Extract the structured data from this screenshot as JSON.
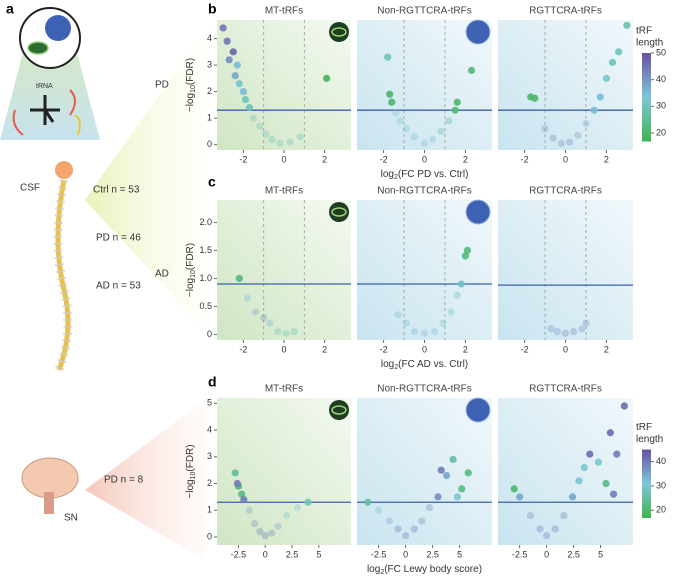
{
  "panel_labels": [
    "a",
    "b",
    "c",
    "d"
  ],
  "left": {
    "tRNA": "tRNA",
    "row1": "PD",
    "csf": "CSF",
    "ctrl": "Ctrl n = 53",
    "pd": "PD n = 46",
    "ad": "AD n = 53",
    "row2": "AD",
    "sn": "SN",
    "sn_pd": "PD n = 8"
  },
  "chart_data": [
    {
      "type": "scatter",
      "title": "MT-tRFs",
      "ylabel": [
        "−log",
        "10",
        "(FDR)"
      ],
      "icon": "mito",
      "background": "green",
      "x": [
        -3,
        -2.8,
        -2.5,
        -2.7,
        -2.3,
        -2.4,
        -2.2,
        -2,
        -1.9,
        -1.7,
        -1.5,
        -1.2,
        -0.9,
        -0.6,
        -0.2,
        0.3,
        0.8,
        2.1
      ],
      "values": [
        4.4,
        3.9,
        3.5,
        3.2,
        3,
        2.6,
        2.3,
        2,
        1.7,
        1.4,
        1,
        0.7,
        0.4,
        0.2,
        0.05,
        0.1,
        0.3,
        2.5
      ],
      "length": [
        45,
        45,
        48,
        42,
        35,
        38,
        32,
        35,
        30,
        30,
        28,
        30,
        32,
        30,
        30,
        30,
        30,
        18
      ],
      "xlim": [
        -3.3,
        3.3
      ],
      "ylim": [
        -0.2,
        4.7
      ],
      "xticks": [
        -2,
        0,
        2
      ],
      "yticks": [
        0,
        1,
        2,
        3,
        4
      ],
      "threshold": 1.3,
      "fc_lines": [
        -1,
        1
      ]
    },
    {
      "type": "scatter",
      "title": "Non-RGTTCRA-tRFs",
      "xlabel": [
        "log",
        "2",
        "(FC PD vs. Ctrl)"
      ],
      "icon": "nucleus",
      "background": "blue",
      "x": [
        -1.8,
        -1.7,
        -1.6,
        -1.4,
        -1.2,
        -0.9,
        -0.5,
        0,
        0.4,
        0.8,
        1.2,
        1.5,
        1.6,
        2.3
      ],
      "values": [
        3.3,
        1.9,
        1.6,
        1.2,
        0.9,
        0.6,
        0.3,
        0.05,
        0.2,
        0.5,
        0.9,
        1.3,
        1.6,
        2.8
      ],
      "length": [
        30,
        20,
        20,
        35,
        30,
        30,
        35,
        35,
        35,
        28,
        25,
        22,
        20,
        22
      ],
      "xlim": [
        -3.3,
        3.3
      ],
      "ylim": [
        -0.2,
        4.7
      ],
      "xticks": [
        -2,
        0,
        2
      ],
      "yticks": [
        0,
        1,
        2,
        3,
        4
      ],
      "threshold": 1.3,
      "fc_lines": [
        -1,
        1
      ]
    },
    {
      "type": "scatter",
      "title": "RGTTCRA-tRFs",
      "background": "blue",
      "x": [
        -1.7,
        -1.5,
        -1,
        -0.6,
        -0.2,
        0.2,
        0.6,
        1,
        1.4,
        1.7,
        2,
        2.3,
        2.6,
        3
      ],
      "values": [
        1.8,
        1.75,
        0.6,
        0.25,
        0.05,
        0.1,
        0.35,
        0.8,
        1.3,
        1.8,
        2.5,
        3.1,
        3.5,
        4.5
      ],
      "length": [
        20,
        20,
        40,
        42,
        42,
        42,
        40,
        38,
        35,
        35,
        32,
        30,
        30,
        28
      ],
      "xlim": [
        -3.3,
        3.3
      ],
      "ylim": [
        -0.2,
        4.7
      ],
      "xticks": [
        -2,
        0,
        2
      ],
      "yticks": [
        0,
        1,
        2,
        3,
        4
      ],
      "threshold": 1.3,
      "fc_lines": [
        -1,
        1
      ],
      "colorbar": {
        "title": [
          "tRF",
          "length"
        ],
        "lim": [
          17,
          50
        ],
        "ticks": [
          20,
          30,
          40,
          50
        ],
        "colors": [
          "#3fb34f",
          "#7cc7da",
          "#6a52a3"
        ]
      }
    },
    {
      "type": "scatter",
      "title": "MT-tRFs",
      "ylabel": [
        "−log",
        "10",
        "(FDR)"
      ],
      "icon": "mito",
      "background": "green",
      "x": [
        -2.2,
        -1.8,
        -1.4,
        -1,
        -0.7,
        -0.3,
        0.1,
        0.5
      ],
      "values": [
        1,
        0.65,
        0.4,
        0.3,
        0.2,
        0.05,
        0.02,
        0.05
      ],
      "length": [
        22,
        35,
        38,
        40,
        35,
        30,
        30,
        28
      ],
      "xlim": [
        -3.3,
        3.3
      ],
      "ylim": [
        -0.1,
        2.4
      ],
      "xticks": [
        -2,
        0,
        2
      ],
      "yticks": [
        0,
        {
          "value": 0.5,
          "label": "0.5"
        },
        {
          "value": 1,
          "label": "1.0"
        },
        {
          "value": 1.5,
          "label": "1.5"
        },
        {
          "value": 2,
          "label": "2.0"
        }
      ],
      "threshold": 0.9,
      "fc_lines": [
        -1,
        1
      ]
    },
    {
      "type": "scatter",
      "title": "Non-RGTTCRA-tRFs",
      "xlabel": [
        "log",
        "2",
        "(FC AD vs. Ctrl)"
      ],
      "icon": "nucleus",
      "background": "blue",
      "x": [
        -1.3,
        -0.9,
        -0.5,
        0,
        0.5,
        0.9,
        1.3,
        1.6,
        1.8,
        2.1,
        2
      ],
      "values": [
        0.35,
        0.2,
        0.05,
        0.02,
        0.05,
        0.2,
        0.4,
        0.7,
        0.9,
        1.5,
        1.4
      ],
      "length": [
        30,
        30,
        35,
        35,
        35,
        32,
        30,
        28,
        30,
        22,
        22
      ],
      "xlim": [
        -3.3,
        3.3
      ],
      "ylim": [
        -0.1,
        2.4
      ],
      "xticks": [
        -2,
        0,
        2
      ],
      "yticks": [
        0,
        {
          "value": 0.5,
          "label": "0.5"
        },
        {
          "value": 1,
          "label": "1.0"
        },
        {
          "value": 1.5,
          "label": "1.5"
        },
        {
          "value": 2,
          "label": "2.0"
        }
      ],
      "threshold": 0.9,
      "fc_lines": [
        -1,
        1
      ]
    },
    {
      "type": "scatter",
      "title": "RGTTCRA-tRFs",
      "background": "blue",
      "x": [
        -0.7,
        -0.4,
        0,
        0.4,
        0.8,
        1
      ],
      "values": [
        0.1,
        0.05,
        0.02,
        0.05,
        0.1,
        0.2
      ],
      "length": [
        40,
        40,
        42,
        42,
        40,
        40
      ],
      "xlim": [
        -3.3,
        3.3
      ],
      "ylim": [
        -0.1,
        2.4
      ],
      "xticks": [
        -2,
        0,
        2
      ],
      "yticks": [
        0,
        {
          "value": 0.5,
          "label": "0.5"
        },
        {
          "value": 1,
          "label": "1.0"
        },
        {
          "value": 1.5,
          "label": "1.5"
        },
        {
          "value": 2,
          "label": "2.0"
        }
      ],
      "threshold": 0.88,
      "fc_lines": [
        -1,
        1
      ]
    },
    {
      "type": "scatter",
      "title": "MT-tRFs",
      "ylabel": [
        "−log",
        "10",
        "(FDR)"
      ],
      "icon": "mito",
      "background": "green",
      "x": [
        -2.8,
        -2.5,
        -2.2,
        -2.6,
        -2,
        -1.5,
        -1,
        -0.5,
        0,
        0.6,
        1.2,
        2,
        3,
        4
      ],
      "values": [
        2.4,
        1.9,
        1.6,
        2,
        1.4,
        1,
        0.5,
        0.2,
        0.05,
        0.15,
        0.4,
        0.8,
        1.1,
        1.3
      ],
      "length": [
        25,
        20,
        22,
        40,
        40,
        35,
        38,
        40,
        40,
        38,
        35,
        30,
        30,
        28
      ],
      "xlim": [
        -4.5,
        8
      ],
      "ylim": [
        -0.3,
        5.2
      ],
      "xticks": [
        -2.5,
        0,
        2.5,
        5
      ],
      "yticks": [
        0,
        1,
        2,
        3,
        4,
        5
      ],
      "threshold": 1.3
    },
    {
      "type": "scatter",
      "title": "Non-RGTTCRA-tRFs",
      "xlabel": [
        "log",
        "2",
        "(FC Lewy body score)"
      ],
      "icon": "nucleus",
      "background": "blue",
      "x": [
        -3.5,
        -2.5,
        -1.5,
        -0.7,
        0,
        0.8,
        1.5,
        2.2,
        3,
        3.3,
        3.8,
        4.4,
        5.2,
        5.8,
        4.8
      ],
      "values": [
        1.3,
        1,
        0.6,
        0.3,
        0.05,
        0.3,
        0.6,
        1.1,
        1.5,
        2.5,
        2.3,
        2.9,
        1.8,
        2.4,
        1.5
      ],
      "length": [
        25,
        28,
        35,
        40,
        40,
        40,
        38,
        38,
        38,
        40,
        35,
        25,
        22,
        22,
        30
      ],
      "xlim": [
        -4.5,
        8
      ],
      "ylim": [
        -0.3,
        5.2
      ],
      "xticks": [
        -2.5,
        0,
        2.5,
        5
      ],
      "yticks": [
        0,
        1,
        2,
        3,
        4,
        5
      ],
      "threshold": 1.3
    },
    {
      "type": "scatter",
      "title": "RGTTCRA-tRFs",
      "background": "blue",
      "x": [
        -3,
        -2.5,
        -1.5,
        -0.6,
        0,
        0.8,
        1.6,
        2.4,
        3,
        3.5,
        4,
        4.8,
        5.5,
        6.5,
        7.2,
        5.9,
        6.2
      ],
      "values": [
        1.8,
        1.5,
        0.8,
        0.3,
        0.05,
        0.3,
        0.8,
        1.5,
        2.1,
        2.6,
        3.1,
        2.8,
        2,
        3.1,
        4.9,
        3.9,
        1.6
      ],
      "length": [
        20,
        35,
        38,
        40,
        40,
        40,
        40,
        35,
        30,
        30,
        42,
        30,
        22,
        40,
        42,
        42,
        40
      ],
      "xlim": [
        -4.5,
        8
      ],
      "ylim": [
        -0.3,
        5.2
      ],
      "xticks": [
        -2.5,
        0,
        2.5,
        5
      ],
      "yticks": [
        0,
        1,
        2,
        3,
        4,
        5
      ],
      "threshold": 1.3,
      "colorbar": {
        "title": [
          "tRF",
          "length"
        ],
        "lim": [
          17,
          45
        ],
        "ticks": [
          20,
          30,
          40
        ],
        "colors": [
          "#3fb34f",
          "#7cc7da",
          "#6a52a3"
        ]
      }
    }
  ]
}
